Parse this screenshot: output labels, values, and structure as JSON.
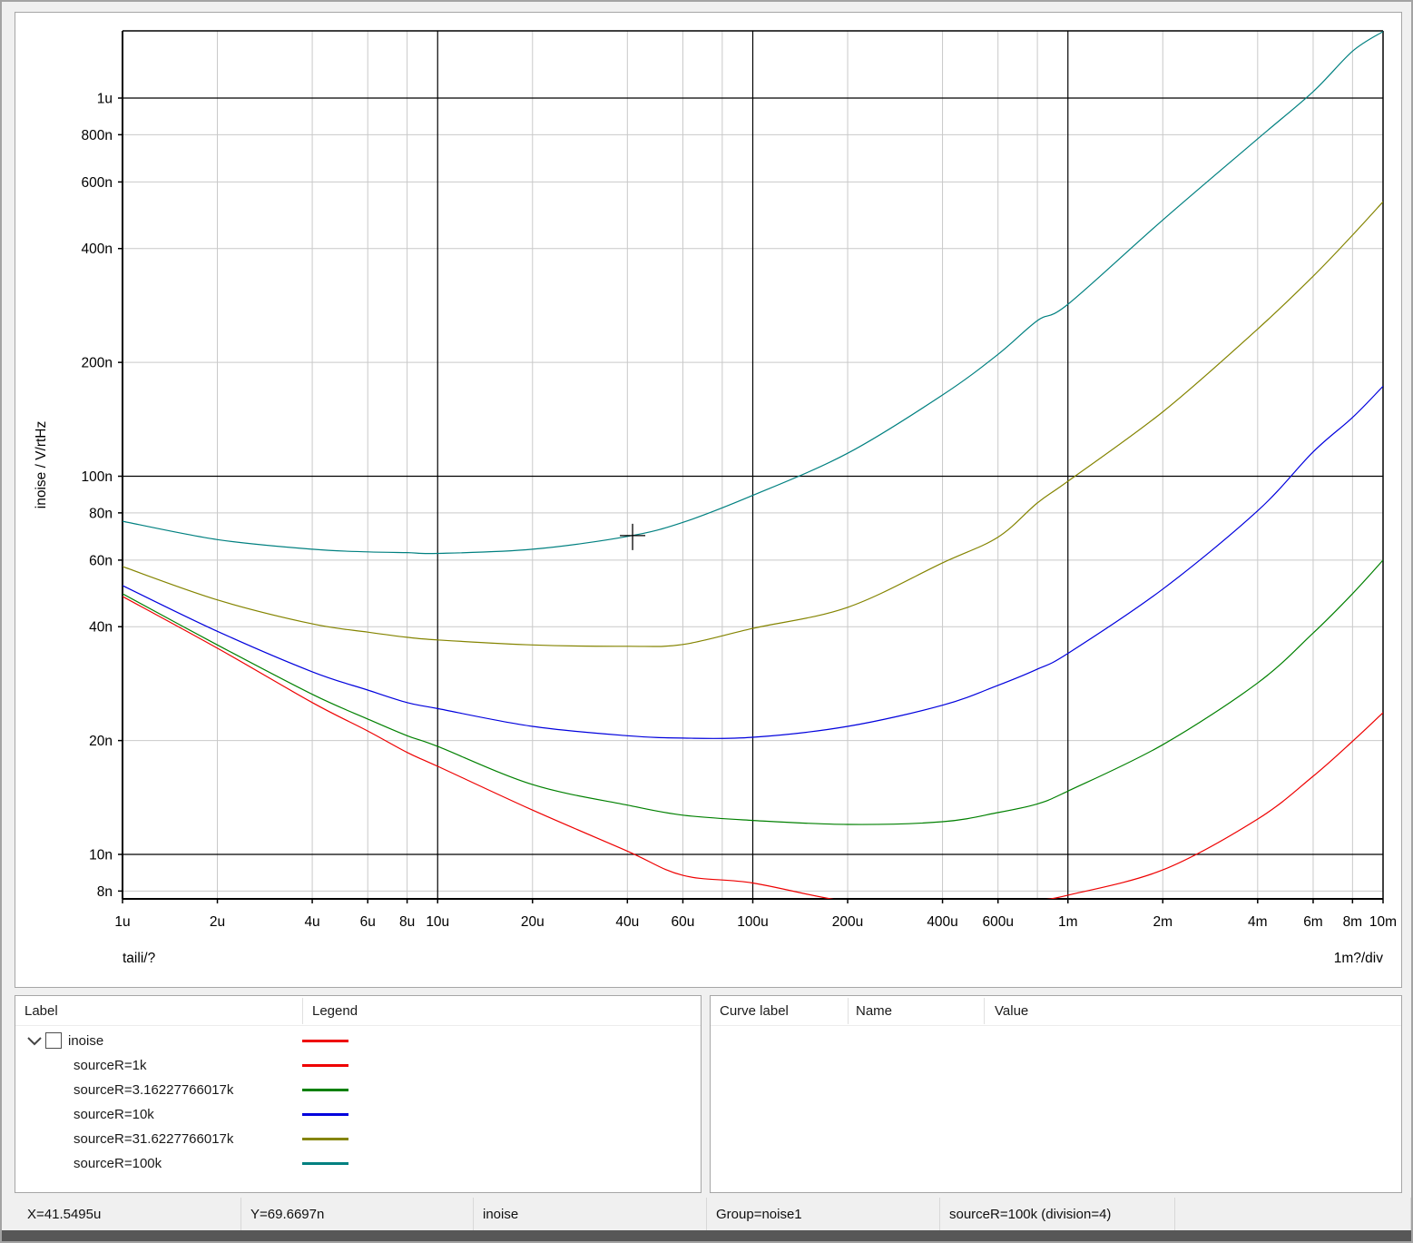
{
  "chart_data": {
    "type": "line",
    "log_x": true,
    "log_y": true,
    "ylabel": "inoise / V/rtHz",
    "x_footer_left": "taili/?",
    "x_footer_right": "1m?/div",
    "x_range_u": [
      1,
      10000
    ],
    "y_range_n": [
      7.6,
      1505
    ],
    "x_ticks": [
      {
        "v": 1,
        "label": "1u"
      },
      {
        "v": 2,
        "label": "2u"
      },
      {
        "v": 4,
        "label": "4u"
      },
      {
        "v": 6,
        "label": "6u"
      },
      {
        "v": 8,
        "label": "8u"
      },
      {
        "v": 10,
        "label": "10u"
      },
      {
        "v": 20,
        "label": "20u"
      },
      {
        "v": 40,
        "label": "40u"
      },
      {
        "v": 60,
        "label": "60u"
      },
      {
        "v": 100,
        "label": "100u"
      },
      {
        "v": 200,
        "label": "200u"
      },
      {
        "v": 400,
        "label": "400u"
      },
      {
        "v": 600,
        "label": "600u"
      },
      {
        "v": 1000,
        "label": "1m"
      },
      {
        "v": 2000,
        "label": "2m"
      },
      {
        "v": 4000,
        "label": "4m"
      },
      {
        "v": 6000,
        "label": "6m"
      },
      {
        "v": 8000,
        "label": "8m"
      },
      {
        "v": 10000,
        "label": "10m"
      }
    ],
    "y_ticks": [
      {
        "v": 1000,
        "label": "1u"
      },
      {
        "v": 800,
        "label": "800n"
      },
      {
        "v": 600,
        "label": "600n"
      },
      {
        "v": 400,
        "label": "400n"
      },
      {
        "v": 200,
        "label": "200n"
      },
      {
        "v": 100,
        "label": "100n"
      },
      {
        "v": 80,
        "label": "80n"
      },
      {
        "v": 60,
        "label": "60n"
      },
      {
        "v": 40,
        "label": "40n"
      },
      {
        "v": 20,
        "label": "20n"
      },
      {
        "v": 10,
        "label": "10n"
      },
      {
        "v": 8,
        "label": "8n"
      }
    ],
    "x_major": [
      10,
      100,
      1000
    ],
    "y_major": [
      1000,
      100,
      10
    ],
    "x_minor": [
      2,
      4,
      6,
      8,
      20,
      40,
      60,
      80,
      200,
      400,
      600,
      800,
      2000,
      4000,
      6000,
      8000
    ],
    "y_minor": [
      800,
      600,
      400,
      200,
      80,
      60,
      40,
      20,
      8
    ],
    "grid_minor_color": "#c9c9c9",
    "grid_major_color": "#000000",
    "series": [
      {
        "name": "sourceR=1k",
        "color": "#ee0000",
        "points": [
          [
            1,
            48.1
          ],
          [
            2,
            35.1
          ],
          [
            4,
            25.2
          ],
          [
            6,
            21.2
          ],
          [
            8,
            18.6
          ],
          [
            10,
            17.1
          ],
          [
            20,
            13.1
          ],
          [
            40,
            10.2
          ],
          [
            60,
            8.8
          ],
          [
            100,
            8.4
          ],
          [
            200,
            7.5
          ],
          [
            400,
            7.2
          ],
          [
            600,
            7.3
          ],
          [
            800,
            7.55
          ],
          [
            1000,
            7.8
          ],
          [
            2000,
            9.1
          ],
          [
            4000,
            12.4
          ],
          [
            6000,
            16.1
          ],
          [
            8000,
            19.9
          ],
          [
            10000,
            23.7
          ]
        ]
      },
      {
        "name": "sourceR=3.16227766017k",
        "color": "#008000",
        "points": [
          [
            1,
            48.9
          ],
          [
            2,
            35.8
          ],
          [
            4,
            26.5
          ],
          [
            6,
            22.8
          ],
          [
            8,
            20.6
          ],
          [
            10,
            19.3
          ],
          [
            20,
            15.3
          ],
          [
            40,
            13.5
          ],
          [
            60,
            12.7
          ],
          [
            100,
            12.3
          ],
          [
            200,
            12.0
          ],
          [
            400,
            12.2
          ],
          [
            600,
            12.9
          ],
          [
            800,
            13.6
          ],
          [
            1000,
            14.7
          ],
          [
            2000,
            19.5
          ],
          [
            4000,
            28.4
          ],
          [
            6000,
            38.5
          ],
          [
            8000,
            48.9
          ],
          [
            10000,
            60
          ]
        ]
      },
      {
        "name": "sourceR=10k",
        "color": "#0000dd",
        "points": [
          [
            1,
            51.4
          ],
          [
            2,
            38.9
          ],
          [
            4,
            30.4
          ],
          [
            6,
            27.2
          ],
          [
            8,
            25.2
          ],
          [
            10,
            24.3
          ],
          [
            20,
            21.8
          ],
          [
            40,
            20.6
          ],
          [
            60,
            20.3
          ],
          [
            100,
            20.4
          ],
          [
            200,
            21.8
          ],
          [
            400,
            24.8
          ],
          [
            600,
            28
          ],
          [
            800,
            30.9
          ],
          [
            1000,
            34
          ],
          [
            2000,
            50.3
          ],
          [
            4000,
            81
          ],
          [
            6000,
            116
          ],
          [
            8000,
            143
          ],
          [
            10000,
            173
          ]
        ]
      },
      {
        "name": "sourceR=31.6227766017k",
        "color": "#848400",
        "points": [
          [
            1,
            57.7
          ],
          [
            2,
            47.1
          ],
          [
            4,
            40.7
          ],
          [
            6,
            38.7
          ],
          [
            8,
            37.5
          ],
          [
            10,
            36.9
          ],
          [
            20,
            35.8
          ],
          [
            40,
            35.5
          ],
          [
            60,
            35.9
          ],
          [
            100,
            39.6
          ],
          [
            200,
            45
          ],
          [
            400,
            59
          ],
          [
            600,
            69
          ],
          [
            800,
            85
          ],
          [
            1000,
            97
          ],
          [
            2000,
            148
          ],
          [
            4000,
            245
          ],
          [
            6000,
            338
          ],
          [
            8000,
            434
          ],
          [
            10000,
            532
          ]
        ]
      },
      {
        "name": "sourceR=100k",
        "color": "#008080",
        "points": [
          [
            1,
            76
          ],
          [
            2,
            68
          ],
          [
            4,
            64.1
          ],
          [
            6,
            63.1
          ],
          [
            8,
            62.8
          ],
          [
            10,
            62.5
          ],
          [
            20,
            64.1
          ],
          [
            40,
            69.3
          ],
          [
            60,
            75.5
          ],
          [
            100,
            89
          ],
          [
            200,
            115
          ],
          [
            400,
            164
          ],
          [
            600,
            210
          ],
          [
            800,
            258
          ],
          [
            1000,
            285
          ],
          [
            2000,
            476
          ],
          [
            4000,
            780
          ],
          [
            6000,
            1040
          ],
          [
            8000,
            1330
          ],
          [
            10000,
            1500
          ]
        ]
      }
    ],
    "cursor": {
      "x_u": 41.5495,
      "y_n": 69.6697
    }
  },
  "legend_panel": {
    "label_header": "Label",
    "legend_header": "Legend",
    "group": {
      "label": "inoise",
      "checked": false,
      "color": "#ee0000",
      "expanded": true
    },
    "items": [
      {
        "label": "sourceR=1k",
        "color": "#ee0000"
      },
      {
        "label": "sourceR=3.16227766017k",
        "color": "#008000"
      },
      {
        "label": "sourceR=10k",
        "color": "#0000dd"
      },
      {
        "label": "sourceR=31.6227766017k",
        "color": "#848400"
      },
      {
        "label": "sourceR=100k",
        "color": "#008080"
      }
    ]
  },
  "curve_panel": {
    "headers": [
      "Curve label",
      "Name",
      "Value"
    ]
  },
  "status_bar": {
    "items": [
      "X=41.5495u",
      "Y=69.6697n",
      "inoise",
      "Group=noise1",
      "sourceR=100k (division=4)",
      ""
    ]
  }
}
